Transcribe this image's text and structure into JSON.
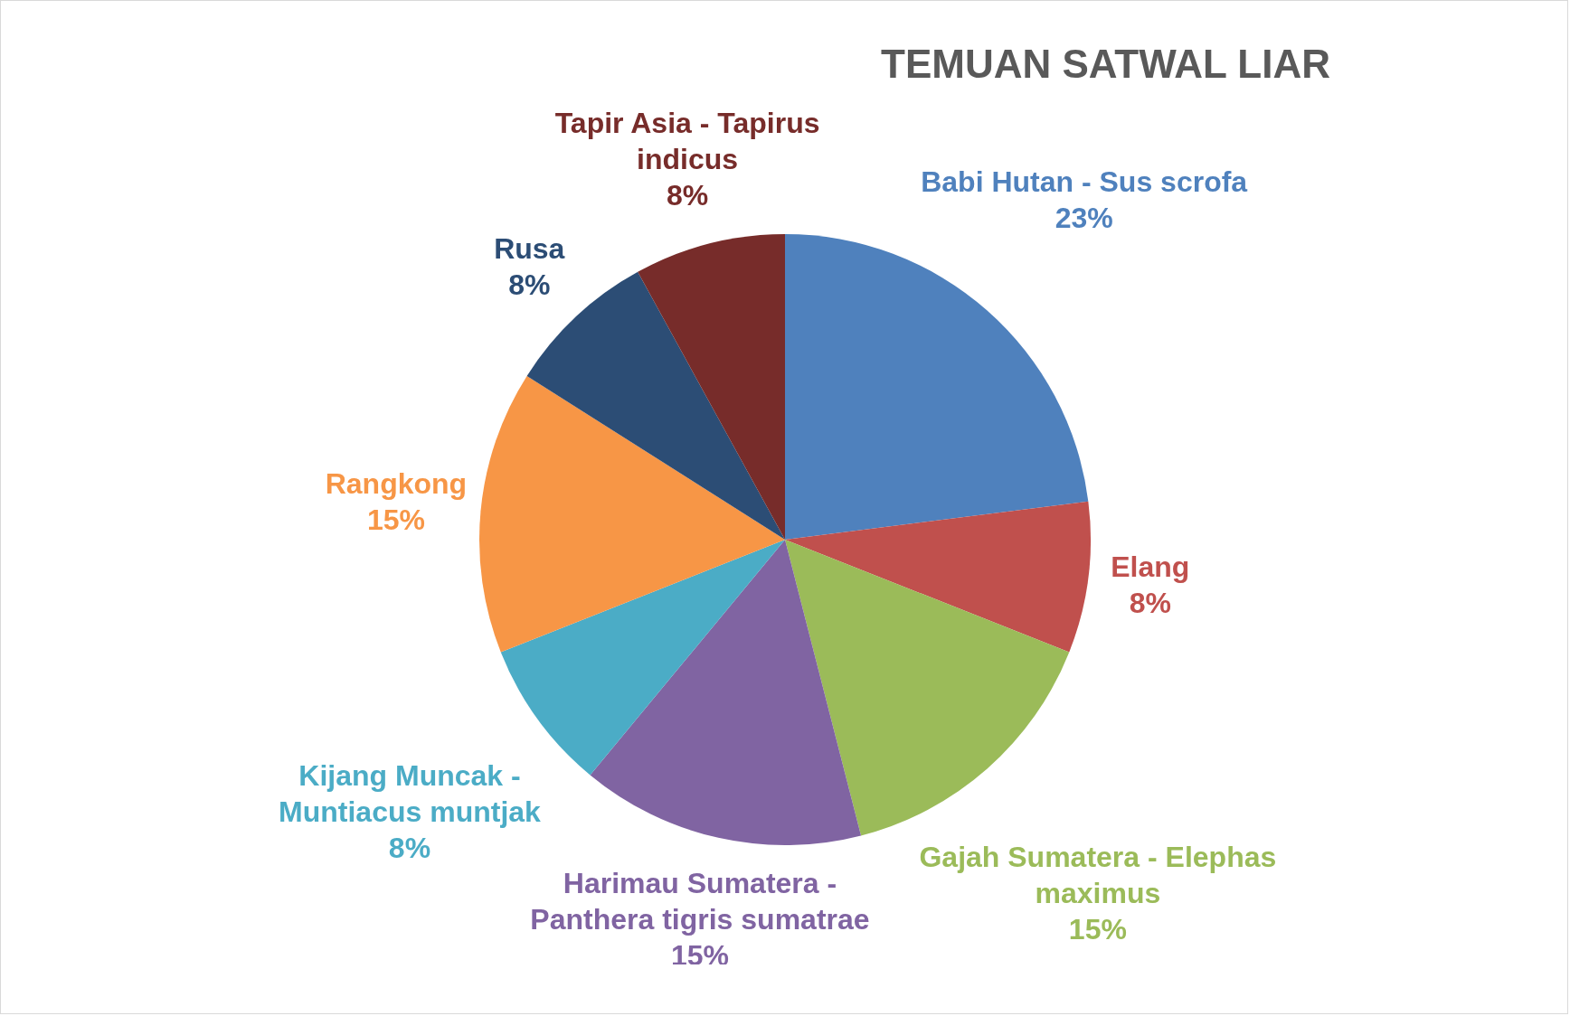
{
  "chart_data": {
    "type": "pie",
    "title": "TEMUAN SATWAL LIAR",
    "categories": [
      "Babi Hutan - Sus scrofa",
      "Elang",
      "Gajah Sumatera - Elephas maximus",
      "Harimau Sumatera - Panthera tigris sumatrae",
      "Kijang Muncak - Muntiacus muntjak",
      "Rangkong",
      "Rusa",
      "Tapir Asia - Tapirus indicus"
    ],
    "values": [
      23,
      8,
      15,
      15,
      8,
      15,
      8,
      8
    ],
    "value_labels": [
      "23%",
      "8%",
      "15%",
      "15%",
      "8%",
      "15%",
      "8%",
      "8%"
    ],
    "colors": [
      "#4f81bd",
      "#c0504d",
      "#9bbb59",
      "#8064a2",
      "#4bacc6",
      "#f79646",
      "#2c4d75",
      "#772c2a"
    ]
  }
}
